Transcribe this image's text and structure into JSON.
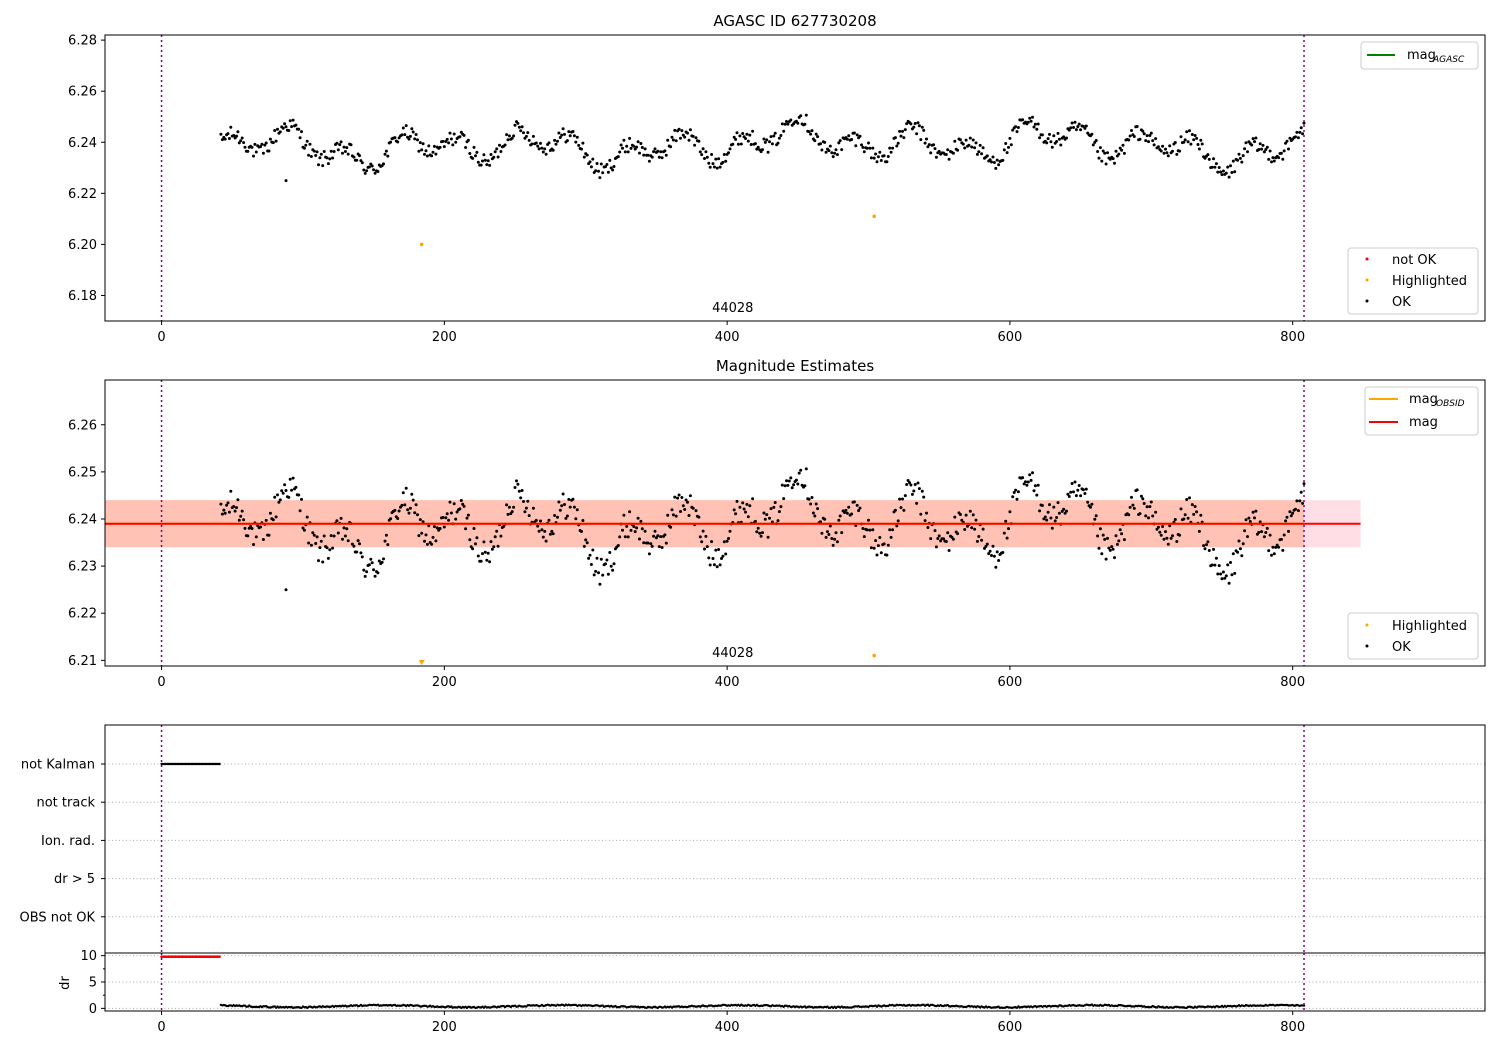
{
  "chart_data": [
    {
      "type": "scatter",
      "title": "AGASC ID 627730208",
      "xlim": [
        -40,
        936
      ],
      "ylim": [
        6.17,
        6.282
      ],
      "x_ticks": [
        0,
        200,
        400,
        600,
        800
      ],
      "y_ticks": [
        6.18,
        6.2,
        6.22,
        6.24,
        6.26,
        6.28
      ],
      "y_tick_labels": [
        "6.18",
        "6.20",
        "6.22",
        "6.24",
        "6.26",
        "6.28"
      ],
      "grid": false,
      "obsid_label": "44028",
      "obsid_boundaries": [
        0,
        808
      ],
      "legend_lines": {
        "placement": "upper right",
        "entries": [
          {
            "label": "mag",
            "sub": "AGASC",
            "color": "#008000"
          }
        ]
      },
      "legend_points": {
        "placement": "lower right",
        "entries": [
          {
            "label": "not OK",
            "color": "#ff0000"
          },
          {
            "label": "Highlighted",
            "color": "#ffa500"
          },
          {
            "label": "OK",
            "color": "#000000"
          }
        ]
      },
      "series": [
        {
          "name": "OK",
          "color": "#000000",
          "x_range": [
            42,
            808
          ],
          "mean": 6.239,
          "amplitude": 0.012
        },
        {
          "name": "Highlighted",
          "color": "#ffa500",
          "points": [
            [
              184,
              6.2
            ],
            [
              504,
              6.211
            ]
          ]
        },
        {
          "name": "not OK",
          "color": "#ff0000",
          "points": []
        }
      ]
    },
    {
      "type": "scatter",
      "title": "Magnitude Estimates",
      "xlim": [
        -40,
        936
      ],
      "ylim": [
        6.2088,
        6.2695
      ],
      "x_ticks": [
        0,
        200,
        400,
        600,
        800
      ],
      "y_ticks": [
        6.21,
        6.22,
        6.23,
        6.24,
        6.25,
        6.26
      ],
      "y_tick_labels": [
        "6.21",
        "6.22",
        "6.23",
        "6.24",
        "6.25",
        "6.26"
      ],
      "grid": false,
      "obsid_label": "44028",
      "obsid_boundaries": [
        0,
        808
      ],
      "mag": 6.239,
      "mag_band": [
        6.234,
        6.244
      ],
      "mag_line_x": [
        -40,
        848
      ],
      "mag_obsid_band_x": [
        -40,
        808
      ],
      "legend_lines": {
        "placement": "upper right",
        "entries": [
          {
            "label": "mag",
            "sub": "OBSID",
            "color": "#ffa500"
          },
          {
            "label": "mag",
            "sub": "",
            "color": "#ff0000"
          }
        ]
      },
      "legend_points": {
        "placement": "lower right",
        "entries": [
          {
            "label": "Highlighted",
            "color": "#ffa500"
          },
          {
            "label": "OK",
            "color": "#000000"
          }
        ]
      },
      "series": [
        {
          "name": "OK",
          "color": "#000000",
          "x_range": [
            42,
            808
          ]
        },
        {
          "name": "Highlighted",
          "color": "#ffa500",
          "points": [
            [
              504,
              6.211
            ]
          ],
          "off_scale_low": [
            184
          ]
        }
      ]
    },
    {
      "type": "scatter",
      "title": "",
      "xlim": [
        -40,
        936
      ],
      "categories": [
        "not Kalman",
        "not track",
        "Ion. rad.",
        "dr > 5",
        "OBS not OK"
      ],
      "grid": "horizontal dotted",
      "obsid_boundaries": [
        0,
        808
      ],
      "flag_points": [
        {
          "category": "not Kalman",
          "x_range": [
            0,
            41
          ]
        }
      ]
    },
    {
      "type": "scatter",
      "title": "",
      "ylabel": "dr",
      "xlim": [
        -40,
        936
      ],
      "ylim": [
        -0.5,
        10.5
      ],
      "x_ticks": [
        0,
        200,
        400,
        600,
        800
      ],
      "y_ticks": [
        0,
        5,
        10
      ],
      "grid": "horizontal dotted",
      "obsid_boundaries": [
        0,
        808
      ],
      "series": [
        {
          "name": "dr > 5",
          "color": "#ff0000",
          "x_range": [
            0,
            41
          ],
          "value": 9.8
        },
        {
          "name": "dr",
          "color": "#000000",
          "x_range": [
            42,
            808
          ],
          "mean": 0.4
        }
      ]
    }
  ]
}
